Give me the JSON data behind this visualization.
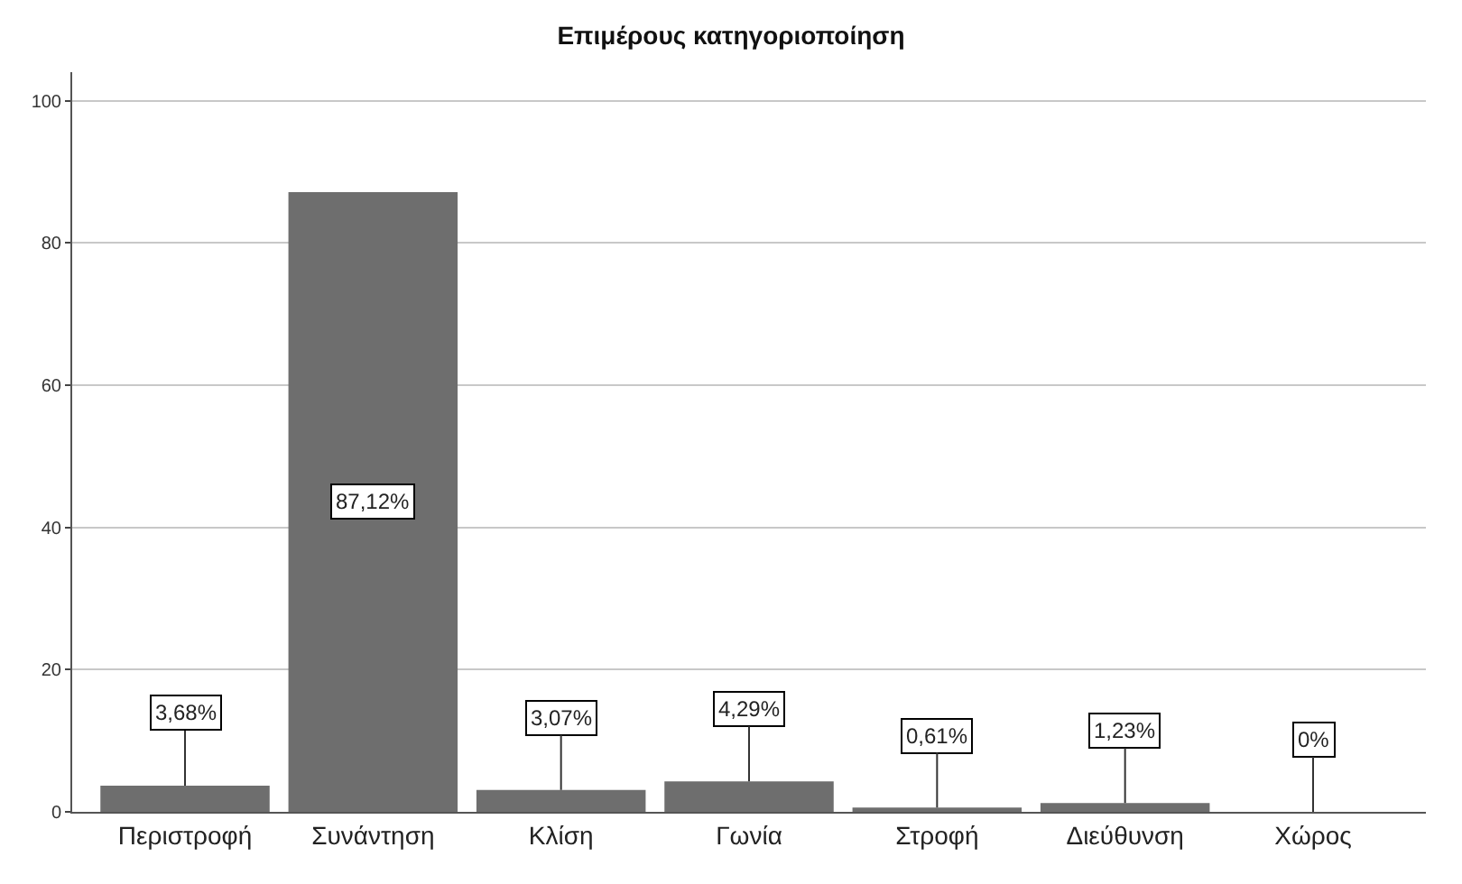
{
  "chart_data": {
    "type": "bar",
    "title": "Επιμέρους κατηγοριοποίηση",
    "categories": [
      "Περιστροφή",
      "Συνάντηση",
      "Κλίση",
      "Γωνία",
      "Στροφή",
      "Διεύθυνση",
      "Χώρος"
    ],
    "values": [
      3.68,
      87.12,
      3.07,
      4.29,
      0.61,
      1.23,
      0
    ],
    "value_labels": [
      "3,68%",
      "87,12%",
      "3,07%",
      "4,29%",
      "0,61%",
      "1,23%",
      "0%"
    ],
    "color": "#6e6e6e",
    "ylim": [
      0,
      104
    ],
    "yticks": [
      0,
      20,
      40,
      60,
      80,
      100
    ],
    "grid": "y",
    "legend": false
  }
}
